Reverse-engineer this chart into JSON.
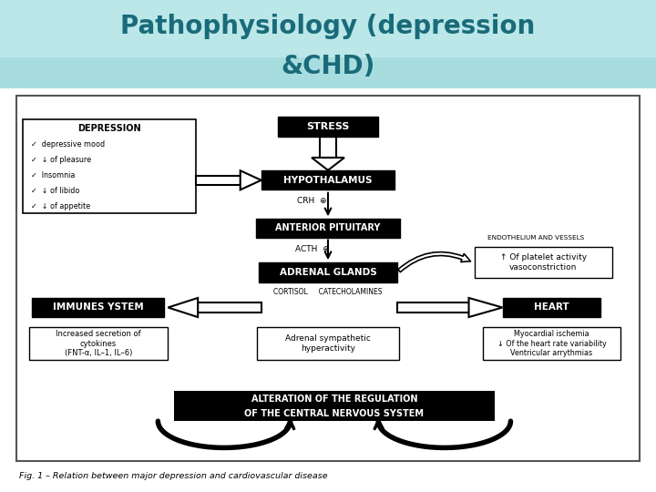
{
  "title_line1": "Pathophysiology (depression",
  "title_line2": "&CHD)",
  "title_color": "#1a6b7a",
  "caption": "Fig. 1 – Relation between major depression and cardiovascular disease",
  "depression_items": [
    "✓  depressive mood",
    "✓  ↓ of pleasure",
    "✓  Insomnia",
    "✓  ↓ of libido",
    "✓  ↓ of appetite"
  ]
}
